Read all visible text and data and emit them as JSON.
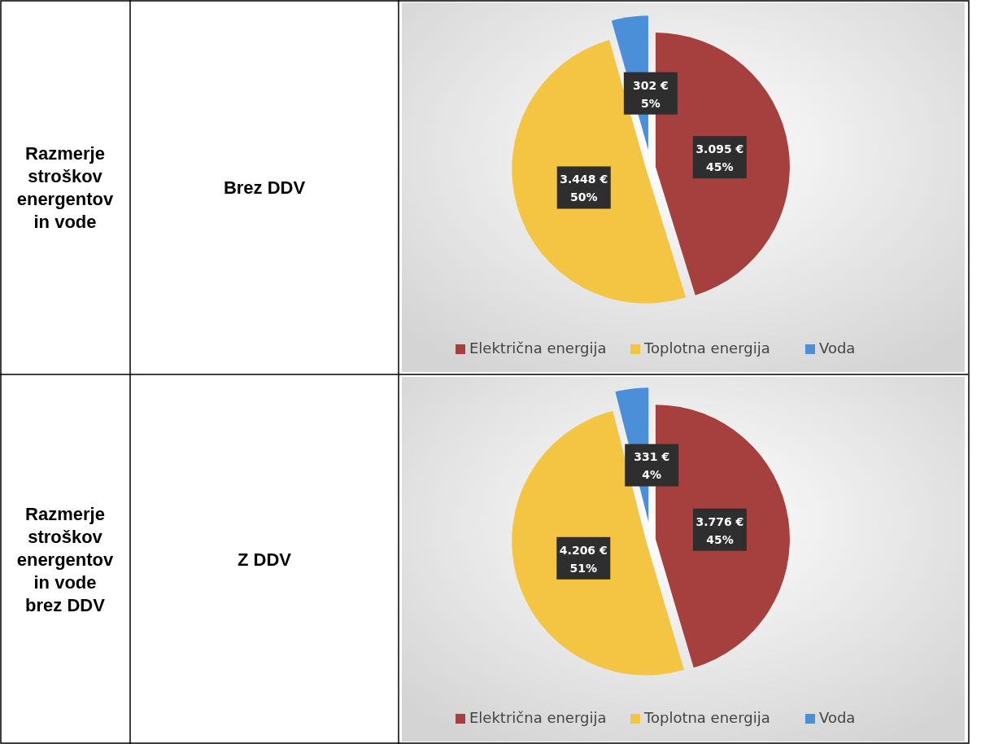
{
  "chart_data": [
    {
      "type": "pie",
      "annotations": [
        "Razmerje stroškov energentov in vode",
        "Brez DDV"
      ],
      "categories": [
        "Električna energija",
        "Toplotna energija",
        "Voda"
      ],
      "values": [
        3095,
        3448,
        302
      ],
      "colors": [
        "#a5403e",
        "#f4c542",
        "#4a8fd8"
      ],
      "value_labels": [
        "3.095 €\n45%",
        "3.448 €\n50%",
        "302 €\n5%"
      ],
      "legend": "bottom"
    },
    {
      "type": "pie",
      "annotations": [
        "Razmerje stroškov energentov in vode brez DDV",
        "Z DDV"
      ],
      "categories": [
        "Električna energija",
        "Toplotna energija",
        "Voda"
      ],
      "values": [
        3776,
        4206,
        331
      ],
      "colors": [
        "#a5403e",
        "#f4c542",
        "#4a8fd8"
      ],
      "value_labels": [
        "3.776 €\n45%",
        "4.206 €\n51%",
        "331 €\n4%"
      ],
      "legend": "bottom"
    }
  ]
}
